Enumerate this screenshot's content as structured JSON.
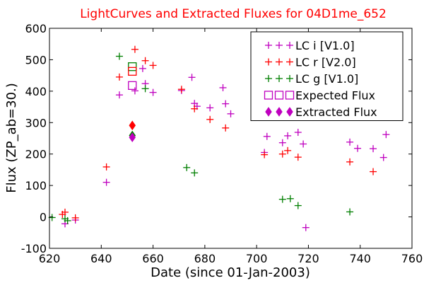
{
  "chart_data": {
    "type": "scatter",
    "title": "LightCurves and Extracted Fluxes for 04D1me_652",
    "title_color": "#ff0000",
    "xlabel": "Date (since 01-Jan-2003)",
    "ylabel": "Flux (ZP_ab=30.)",
    "xlim": [
      620,
      760
    ],
    "ylim": [
      -100,
      600
    ],
    "xticks": [
      620,
      640,
      660,
      680,
      700,
      720,
      740,
      760
    ],
    "yticks": [
      -100,
      0,
      100,
      200,
      300,
      400,
      500,
      600
    ],
    "grid": false,
    "legend_position": "top-right",
    "series": [
      {
        "name": "LC i [V1.0]",
        "marker": "plus",
        "color": "#bf00bf",
        "points": [
          [
            626,
            -22
          ],
          [
            630,
            -10
          ],
          [
            642,
            110
          ],
          [
            647,
            388
          ],
          [
            653,
            401
          ],
          [
            656,
            472
          ],
          [
            657,
            424
          ],
          [
            660,
            396
          ],
          [
            671,
            402
          ],
          [
            675,
            444
          ],
          [
            676,
            361
          ],
          [
            677,
            352
          ],
          [
            682,
            347
          ],
          [
            687,
            411
          ],
          [
            688,
            360
          ],
          [
            690,
            328
          ],
          [
            703,
            205
          ],
          [
            704,
            256
          ],
          [
            710,
            236
          ],
          [
            712,
            258
          ],
          [
            716,
            269
          ],
          [
            718,
            232
          ],
          [
            719,
            -34
          ],
          [
            736,
            238
          ],
          [
            739,
            218
          ],
          [
            745,
            217
          ],
          [
            749,
            189
          ],
          [
            750,
            262
          ]
        ]
      },
      {
        "name": "LC r [V2.0]",
        "marker": "plus",
        "color": "#ff0000",
        "points": [
          [
            625,
            8
          ],
          [
            626,
            15
          ],
          [
            630,
            -3
          ],
          [
            642,
            159
          ],
          [
            647,
            445
          ],
          [
            653,
            533
          ],
          [
            657,
            497
          ],
          [
            660,
            482
          ],
          [
            671,
            406
          ],
          [
            676,
            344
          ],
          [
            682,
            310
          ],
          [
            688,
            283
          ],
          [
            703,
            198
          ],
          [
            710,
            200
          ],
          [
            712,
            211
          ],
          [
            716,
            190
          ],
          [
            736,
            175
          ],
          [
            745,
            144
          ]
        ]
      },
      {
        "name": "LC g [V1.0]",
        "marker": "plus",
        "color": "#007f00",
        "points": [
          [
            621,
            -2
          ],
          [
            626,
            -6
          ],
          [
            627,
            -12
          ],
          [
            647,
            511
          ],
          [
            657,
            408
          ],
          [
            673,
            157
          ],
          [
            676,
            140
          ],
          [
            710,
            56
          ],
          [
            713,
            58
          ],
          [
            716,
            36
          ],
          [
            736,
            16
          ]
        ]
      },
      {
        "name": "Expected Flux",
        "marker": "open-square",
        "points": [
          {
            "x": 652,
            "y": 478,
            "color": "#007f00"
          },
          {
            "x": 652,
            "y": 463,
            "color": "#ff0000"
          },
          {
            "x": 652,
            "y": 418,
            "color": "#bf00bf"
          }
        ]
      },
      {
        "name": "Extracted Flux",
        "marker": "diamond",
        "points": [
          {
            "x": 652,
            "y": 291,
            "color": "#ff0000"
          },
          {
            "x": 652,
            "y": 259,
            "color": "#007f00"
          },
          {
            "x": 652,
            "y": 253,
            "color": "#bf00bf"
          }
        ]
      }
    ],
    "legend": [
      {
        "label": "LC i [V1.0]",
        "marker": "plus",
        "color": "#bf00bf"
      },
      {
        "label": "LC r [V2.0]",
        "marker": "plus",
        "color": "#ff0000"
      },
      {
        "label": "LC g [V1.0]",
        "marker": "plus",
        "color": "#007f00"
      },
      {
        "label": "Expected Flux",
        "marker": "open-square",
        "color": "#bf00bf"
      },
      {
        "label": "Extracted Flux",
        "marker": "diamond",
        "color": "#bf00bf"
      }
    ]
  }
}
